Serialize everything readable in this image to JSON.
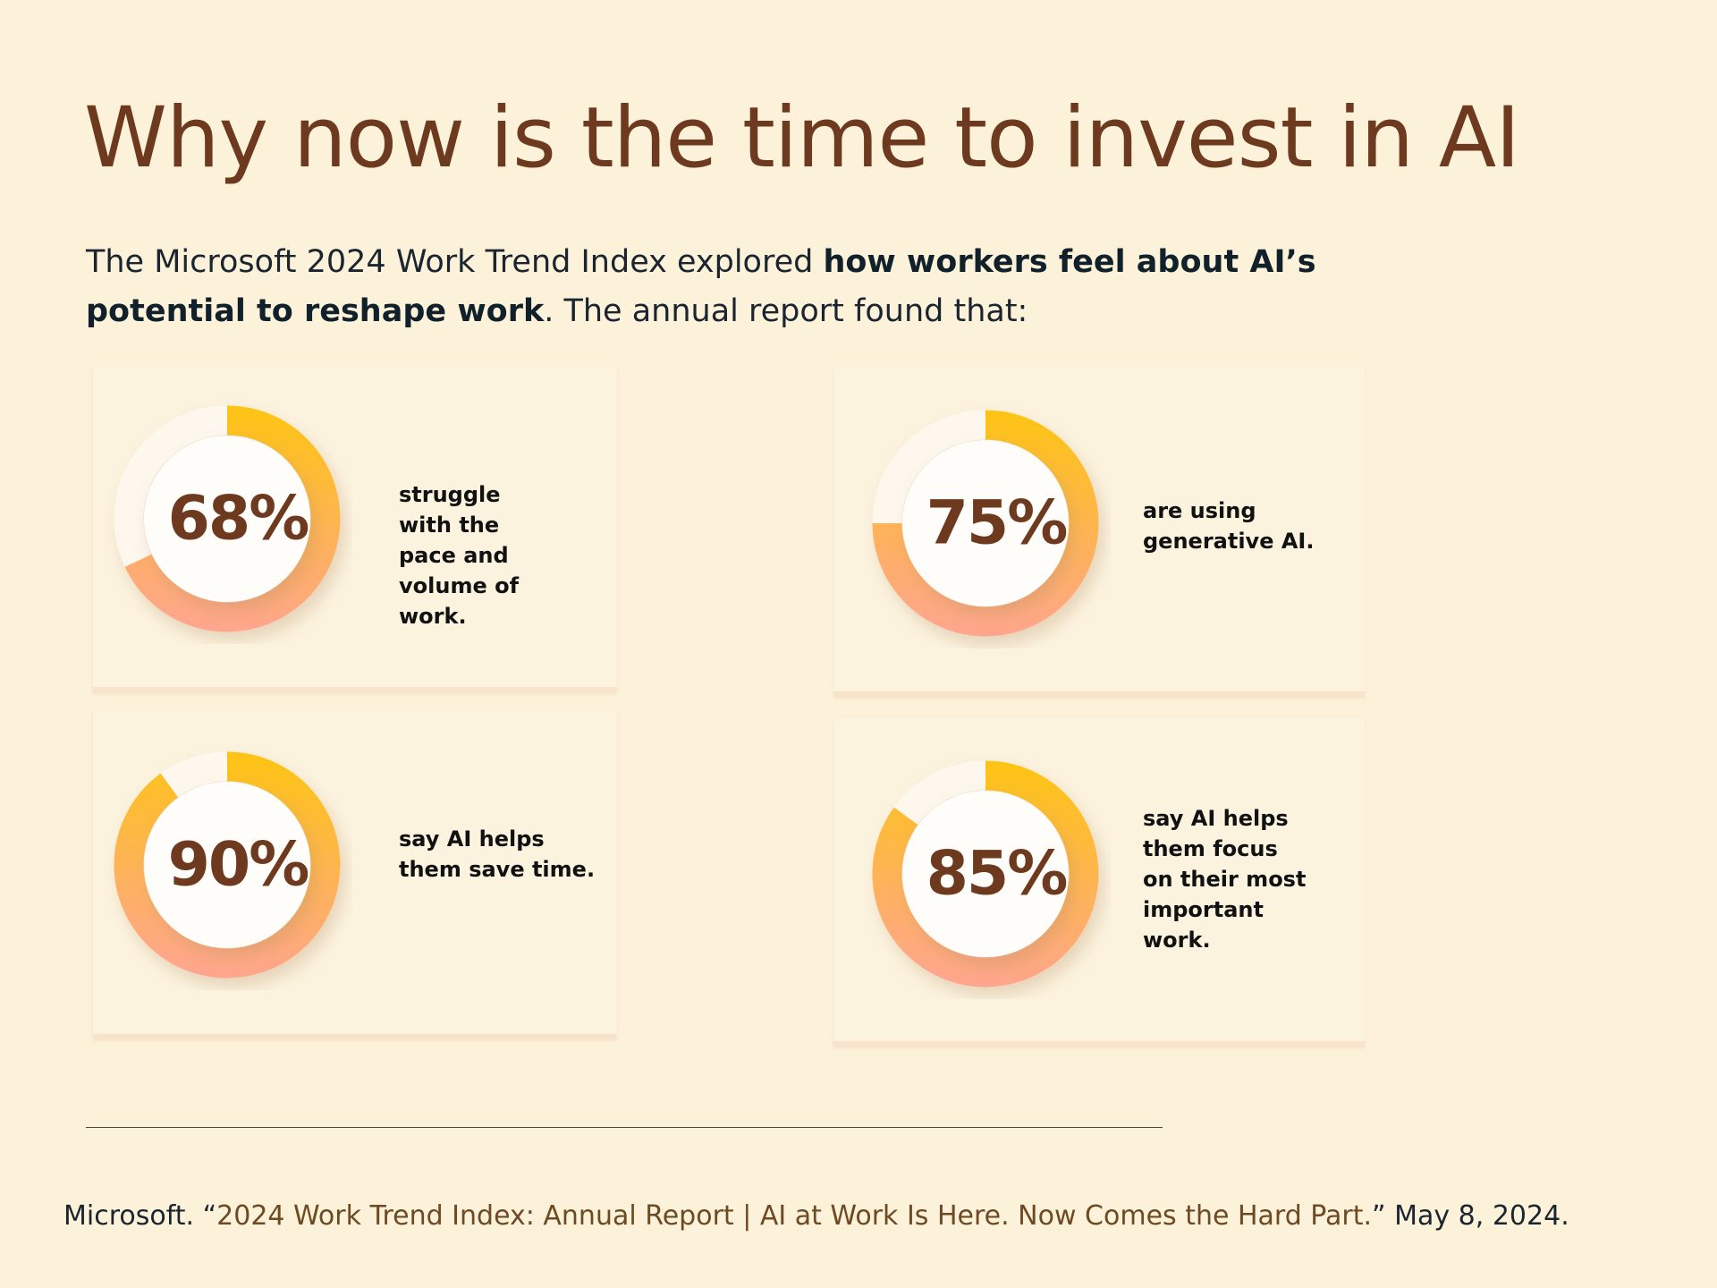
{
  "title": "Why now is the time to invest in AI",
  "intro": {
    "before": "The Microsoft 2024 Work Trend Index explored ",
    "bold": "how workers feel about AI’s potential to reshape work",
    "after": ". The annual report found that:"
  },
  "stats": [
    {
      "value": 68,
      "label": "68%",
      "text": "struggle with the pace and volume of work."
    },
    {
      "value": 75,
      "label": "75%",
      "text": "are using generative AI."
    },
    {
      "value": 90,
      "label": "90%",
      "text": "say AI helps them save time."
    },
    {
      "value": 85,
      "label": "85%",
      "text": "say AI helps them focus on their most important work."
    }
  ],
  "citation": {
    "before": "Microsoft. “",
    "link": "2024 Work Trend Index: Annual Report | AI at Work Is Here. Now Comes the Hard Part.",
    "after": "” May 8, 2024."
  }
}
